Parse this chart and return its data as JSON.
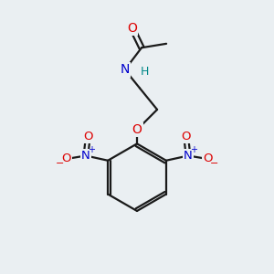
{
  "background_color": "#eaeff2",
  "bond_color": "#1a1a1a",
  "atom_colors": {
    "O": "#dd0000",
    "N": "#0000cc",
    "H": "#008888",
    "C": "#1a1a1a"
  },
  "figsize": [
    3.0,
    3.0
  ],
  "dpi": 100
}
